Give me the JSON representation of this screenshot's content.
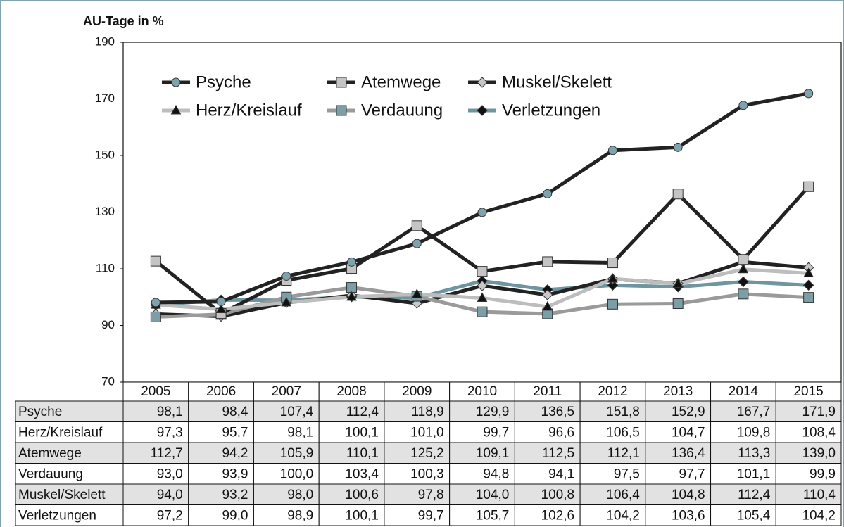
{
  "chart_data": {
    "type": "line",
    "y_label": "AU-Tage in %",
    "categories": [
      "2005",
      "2006",
      "2007",
      "2008",
      "2009",
      "2010",
      "2011",
      "2012",
      "2013",
      "2014",
      "2015"
    ],
    "ylim": [
      70,
      190
    ],
    "yticks": [
      70,
      90,
      110,
      130,
      150,
      170,
      190
    ],
    "grid": false,
    "series": [
      {
        "name": "Psyche",
        "color": "#222222",
        "marker": "circle",
        "marker_color": "#7fa3ad",
        "values": [
          98.1,
          98.4,
          107.4,
          112.4,
          118.9,
          129.9,
          136.5,
          151.8,
          152.9,
          167.7,
          171.9
        ],
        "value_labels": [
          "98,1",
          "98,4",
          "107,4",
          "112,4",
          "118,9",
          "129,9",
          "136,5",
          "151,8",
          "152,9",
          "167,7",
          "171,9"
        ]
      },
      {
        "name": "Herz/Kreislauf",
        "color": "#bdbdbd",
        "marker": "triangle",
        "marker_color": "#111111",
        "values": [
          97.3,
          95.7,
          98.1,
          100.1,
          101.0,
          99.7,
          96.6,
          106.5,
          104.7,
          109.8,
          108.4
        ],
        "value_labels": [
          "97,3",
          "95,7",
          "98,1",
          "100,1",
          "101,0",
          "99,7",
          "96,6",
          "106,5",
          "104,7",
          "109,8",
          "108,4"
        ]
      },
      {
        "name": "Atemwege",
        "color": "#222222",
        "marker": "square",
        "marker_color": "#c4c4c4",
        "values": [
          112.7,
          94.2,
          105.9,
          110.1,
          125.2,
          109.1,
          112.5,
          112.1,
          136.4,
          113.3,
          139.0
        ],
        "value_labels": [
          "112,7",
          "94,2",
          "105,9",
          "110,1",
          "125,2",
          "109,1",
          "112,5",
          "112,1",
          "136,4",
          "113,3",
          "139,0"
        ]
      },
      {
        "name": "Verdauung",
        "color": "#9a9a9a",
        "marker": "square",
        "marker_color": "#7b9ea7",
        "values": [
          93.0,
          93.9,
          100.0,
          103.4,
          100.3,
          94.8,
          94.1,
          97.5,
          97.7,
          101.1,
          99.9
        ],
        "value_labels": [
          "93,0",
          "93,9",
          "100,0",
          "103,4",
          "100,3",
          "94,8",
          "94,1",
          "97,5",
          "97,7",
          "101,1",
          "99,9"
        ]
      },
      {
        "name": "Muskel/Skelett",
        "color": "#222222",
        "marker": "diamond",
        "marker_color": "#c8c8c8",
        "values": [
          94.0,
          93.2,
          98.0,
          100.6,
          97.8,
          104.0,
          100.8,
          106.4,
          104.8,
          112.4,
          110.4
        ],
        "value_labels": [
          "94,0",
          "93,2",
          "98,0",
          "100,6",
          "97,8",
          "104,0",
          "100,8",
          "106,4",
          "104,8",
          "112,4",
          "110,4"
        ]
      },
      {
        "name": "Verletzungen",
        "color": "#6f959e",
        "marker": "diamond",
        "marker_color": "#111111",
        "values": [
          97.2,
          99.0,
          98.9,
          100.1,
          99.7,
          105.7,
          102.6,
          104.2,
          103.6,
          105.4,
          104.2
        ],
        "value_labels": [
          "97,2",
          "99,0",
          "98,9",
          "100,1",
          "99,7",
          "105,7",
          "102,6",
          "104,2",
          "103,6",
          "105,4",
          "104,2"
        ]
      }
    ]
  }
}
